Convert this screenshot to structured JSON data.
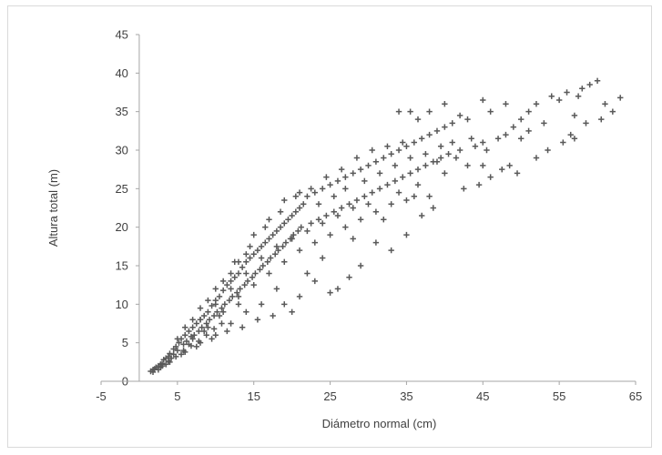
{
  "chart_data": {
    "type": "scatter",
    "xlabel": "Diámetro normal (cm)",
    "ylabel": "Altura total (m)",
    "xlim": [
      -5,
      65
    ],
    "ylim": [
      0,
      45
    ],
    "x_ticks": [
      -5,
      5,
      15,
      25,
      35,
      45,
      55,
      65
    ],
    "y_ticks": [
      0,
      5,
      10,
      15,
      20,
      25,
      30,
      35,
      40,
      45
    ],
    "grid": false,
    "legend": "none",
    "marker": "plus",
    "marker_color": "#595959",
    "series": [
      {
        "points": [
          [
            1.5,
            1.3
          ],
          [
            1.8,
            1.5
          ],
          [
            2.0,
            1.6
          ],
          [
            2.2,
            1.8
          ],
          [
            2.5,
            2.0
          ],
          [
            2.8,
            2.2
          ],
          [
            3.0,
            2.3
          ],
          [
            3.2,
            2.8
          ],
          [
            3.5,
            3.0
          ],
          [
            3.8,
            3.2
          ],
          [
            4.0,
            3.6
          ],
          [
            4.2,
            3.0
          ],
          [
            4.5,
            4.2
          ],
          [
            4.8,
            4.5
          ],
          [
            5.0,
            4.0
          ],
          [
            5.2,
            5.0
          ],
          [
            5.5,
            5.5
          ],
          [
            5.8,
            4.8
          ],
          [
            6.0,
            6.0
          ],
          [
            6.2,
            5.2
          ],
          [
            6.5,
            6.5
          ],
          [
            6.8,
            5.8
          ],
          [
            7.0,
            7.0
          ],
          [
            7.2,
            6.0
          ],
          [
            7.5,
            7.5
          ],
          [
            7.8,
            6.5
          ],
          [
            8.0,
            8.0
          ],
          [
            8.2,
            7.0
          ],
          [
            8.5,
            8.5
          ],
          [
            8.8,
            7.5
          ],
          [
            9.0,
            9.0
          ],
          [
            9.2,
            8.0
          ],
          [
            9.5,
            9.8
          ],
          [
            9.8,
            8.5
          ],
          [
            10.0,
            10.5
          ],
          [
            10.2,
            9.0
          ],
          [
            10.5,
            11.0
          ],
          [
            10.8,
            9.5
          ],
          [
            11.0,
            11.8
          ],
          [
            11.2,
            10.0
          ],
          [
            11.5,
            12.5
          ],
          [
            11.8,
            10.5
          ],
          [
            12.0,
            13.0
          ],
          [
            12.2,
            11.0
          ],
          [
            12.5,
            13.5
          ],
          [
            12.8,
            11.5
          ],
          [
            13.0,
            14.0
          ],
          [
            13.2,
            12.0
          ],
          [
            13.5,
            14.8
          ],
          [
            13.8,
            12.5
          ],
          [
            14.0,
            15.5
          ],
          [
            14.2,
            13.0
          ],
          [
            14.5,
            16.0
          ],
          [
            14.8,
            13.5
          ],
          [
            15.0,
            16.5
          ],
          [
            15.2,
            14.0
          ],
          [
            15.5,
            17.0
          ],
          [
            15.8,
            14.5
          ],
          [
            16.0,
            17.5
          ],
          [
            16.2,
            15.0
          ],
          [
            16.5,
            18.0
          ],
          [
            16.8,
            15.5
          ],
          [
            17.0,
            18.5
          ],
          [
            17.2,
            16.0
          ],
          [
            17.5,
            19.0
          ],
          [
            17.8,
            16.5
          ],
          [
            18.0,
            19.5
          ],
          [
            18.2,
            17.0
          ],
          [
            18.5,
            20.0
          ],
          [
            18.8,
            17.5
          ],
          [
            19.0,
            20.5
          ],
          [
            19.2,
            18.0
          ],
          [
            19.5,
            21.0
          ],
          [
            19.8,
            18.5
          ],
          [
            20.0,
            21.5
          ],
          [
            20.2,
            19.0
          ],
          [
            20.5,
            22.0
          ],
          [
            20.8,
            19.5
          ],
          [
            21.0,
            22.5
          ],
          [
            21.2,
            20.0
          ],
          [
            21.5,
            23.0
          ],
          [
            22.0,
            24.0
          ],
          [
            22.5,
            20.5
          ],
          [
            23.0,
            24.5
          ],
          [
            23.5,
            21.0
          ],
          [
            24.0,
            25.0
          ],
          [
            24.5,
            21.5
          ],
          [
            25.0,
            25.5
          ],
          [
            25.5,
            22.0
          ],
          [
            26.0,
            26.0
          ],
          [
            26.5,
            22.5
          ],
          [
            27.0,
            26.5
          ],
          [
            27.5,
            23.0
          ],
          [
            28.0,
            27.0
          ],
          [
            28.5,
            23.5
          ],
          [
            29.0,
            27.5
          ],
          [
            29.5,
            24.0
          ],
          [
            30.0,
            28.0
          ],
          [
            30.5,
            24.5
          ],
          [
            31.0,
            28.5
          ],
          [
            31.5,
            25.0
          ],
          [
            32.0,
            29.0
          ],
          [
            32.5,
            25.5
          ],
          [
            33.0,
            29.5
          ],
          [
            33.5,
            26.0
          ],
          [
            34.0,
            30.0
          ],
          [
            34.5,
            26.5
          ],
          [
            35.0,
            30.5
          ],
          [
            35.5,
            27.0
          ],
          [
            36.0,
            31.0
          ],
          [
            36.5,
            27.5
          ],
          [
            37.0,
            31.5
          ],
          [
            37.5,
            28.0
          ],
          [
            38.0,
            32.0
          ],
          [
            38.5,
            28.5
          ],
          [
            39.0,
            32.5
          ],
          [
            39.5,
            29.0
          ],
          [
            40.0,
            33.0
          ],
          [
            40.5,
            29.5
          ],
          [
            41.0,
            33.5
          ],
          [
            42.0,
            30.0
          ],
          [
            43.0,
            34.0
          ],
          [
            44.0,
            30.5
          ],
          [
            45.0,
            31.0
          ],
          [
            46.0,
            35.0
          ],
          [
            47.0,
            31.5
          ],
          [
            48.0,
            32.0
          ],
          [
            49.0,
            33.0
          ],
          [
            50.0,
            34.0
          ],
          [
            51.0,
            35.0
          ],
          [
            52.0,
            36.0
          ],
          [
            53.0,
            33.5
          ],
          [
            54.0,
            37.0
          ],
          [
            55.0,
            36.5
          ],
          [
            56.0,
            37.5
          ],
          [
            57.0,
            34.5
          ],
          [
            58.0,
            38.0
          ],
          [
            59.0,
            38.5
          ],
          [
            60.0,
            39.0
          ],
          [
            61.0,
            36.0
          ],
          [
            62.0,
            35.0
          ],
          [
            63.0,
            36.8
          ],
          [
            57.5,
            37.0
          ],
          [
            50.0,
            31.5
          ],
          [
            48.5,
            28.0
          ],
          [
            44.5,
            25.5
          ],
          [
            40.0,
            27.0
          ],
          [
            36.0,
            24.0
          ],
          [
            32.0,
            21.0
          ],
          [
            28.0,
            18.5
          ],
          [
            26.0,
            12.0
          ],
          [
            24.0,
            16.0
          ],
          [
            22.0,
            14.0
          ],
          [
            20.0,
            9.0
          ],
          [
            18.0,
            12.0
          ],
          [
            16.0,
            10.0
          ],
          [
            14.0,
            9.0
          ],
          [
            12.0,
            7.5
          ],
          [
            10.0,
            6.0
          ],
          [
            8.0,
            5.0
          ],
          [
            6.0,
            3.8
          ],
          [
            4.0,
            2.5
          ],
          [
            3.0,
            2.0
          ],
          [
            2.5,
            1.5
          ],
          [
            1.8,
            1.2
          ],
          [
            34.0,
            35.0
          ],
          [
            35.5,
            35.0
          ],
          [
            36.5,
            34.0
          ],
          [
            38.0,
            35.0
          ],
          [
            40.0,
            36.0
          ],
          [
            42.0,
            34.5
          ],
          [
            45.0,
            36.5
          ],
          [
            48.0,
            36.0
          ],
          [
            39.0,
            28.5
          ],
          [
            41.5,
            29.0
          ],
          [
            43.0,
            28.0
          ],
          [
            46.0,
            26.5
          ],
          [
            52.0,
            29.0
          ],
          [
            53.5,
            30.0
          ],
          [
            55.5,
            31.0
          ],
          [
            56.5,
            32.0
          ],
          [
            58.5,
            33.5
          ],
          [
            47.5,
            27.5
          ],
          [
            49.5,
            27.0
          ],
          [
            38.5,
            22.5
          ],
          [
            37.0,
            21.5
          ],
          [
            35.0,
            19.0
          ],
          [
            33.0,
            17.0
          ],
          [
            31.0,
            18.0
          ],
          [
            29.0,
            15.0
          ],
          [
            27.5,
            13.5
          ],
          [
            25.0,
            11.5
          ],
          [
            23.0,
            13.0
          ],
          [
            21.0,
            11.0
          ],
          [
            19.0,
            10.0
          ],
          [
            17.5,
            8.5
          ],
          [
            15.5,
            8.0
          ],
          [
            13.5,
            7.0
          ],
          [
            11.5,
            6.5
          ],
          [
            9.5,
            5.5
          ],
          [
            7.5,
            4.5
          ],
          [
            5.5,
            3.5
          ],
          [
            12.5,
            15.5
          ],
          [
            14.5,
            17.5
          ],
          [
            16.5,
            20.0
          ],
          [
            18.5,
            22.0
          ],
          [
            20.5,
            24.0
          ],
          [
            22.5,
            25.0
          ],
          [
            24.5,
            26.5
          ],
          [
            26.5,
            27.5
          ],
          [
            28.5,
            29.0
          ],
          [
            30.5,
            30.0
          ],
          [
            32.5,
            30.5
          ],
          [
            34.5,
            31.0
          ],
          [
            15.0,
            19.0
          ],
          [
            17.0,
            21.0
          ],
          [
            19.0,
            23.5
          ],
          [
            21.0,
            24.5
          ],
          [
            23.5,
            23.0
          ],
          [
            25.5,
            24.0
          ],
          [
            27.0,
            25.0
          ],
          [
            29.5,
            26.0
          ],
          [
            31.5,
            27.0
          ],
          [
            33.5,
            28.0
          ],
          [
            35.5,
            29.0
          ],
          [
            37.5,
            29.5
          ],
          [
            39.5,
            30.5
          ],
          [
            41.0,
            31.0
          ],
          [
            43.5,
            31.5
          ],
          [
            45.5,
            30.0
          ],
          [
            13.0,
            11.0
          ],
          [
            15.0,
            12.5
          ],
          [
            17.0,
            14.0
          ],
          [
            19.0,
            15.5
          ],
          [
            21.0,
            17.0
          ],
          [
            23.0,
            18.0
          ],
          [
            25.0,
            19.0
          ],
          [
            27.0,
            20.0
          ],
          [
            29.0,
            21.0
          ],
          [
            31.0,
            22.0
          ],
          [
            33.0,
            23.0
          ],
          [
            35.0,
            23.5
          ],
          [
            10.5,
            8.5
          ],
          [
            8.5,
            6.5
          ],
          [
            6.5,
            4.8
          ],
          [
            4.5,
            3.5
          ],
          [
            7.0,
            5.5
          ],
          [
            9.0,
            7.0
          ],
          [
            11.0,
            9.0
          ],
          [
            13.0,
            10.0
          ],
          [
            5.0,
            5.5
          ],
          [
            6.0,
            7.0
          ],
          [
            7.0,
            8.0
          ],
          [
            8.0,
            9.5
          ],
          [
            9.0,
            10.5
          ],
          [
            10.0,
            12.0
          ],
          [
            11.0,
            13.0
          ],
          [
            12.0,
            14.0
          ],
          [
            13.0,
            15.5
          ],
          [
            14.0,
            16.5
          ],
          [
            3.5,
            2.2
          ],
          [
            2.8,
            1.8
          ],
          [
            3.8,
            2.6
          ],
          [
            4.8,
            3.2
          ],
          [
            5.8,
            4.0
          ],
          [
            6.8,
            4.6
          ],
          [
            7.8,
            5.2
          ],
          [
            8.8,
            6.0
          ],
          [
            9.8,
            6.8
          ],
          [
            10.8,
            7.5
          ],
          [
            60.5,
            34.0
          ],
          [
            57.0,
            31.5
          ],
          [
            51.0,
            32.5
          ],
          [
            45.0,
            28.0
          ],
          [
            42.5,
            25.0
          ],
          [
            38.0,
            24.0
          ],
          [
            36.5,
            25.5
          ],
          [
            34.0,
            24.5
          ],
          [
            30.0,
            23.0
          ],
          [
            28.0,
            22.5
          ],
          [
            26.0,
            21.5
          ],
          [
            24.0,
            20.5
          ],
          [
            22.0,
            19.5
          ],
          [
            20.0,
            18.5
          ],
          [
            18.0,
            17.5
          ],
          [
            16.0,
            16.0
          ],
          [
            14.0,
            14.0
          ],
          [
            12.0,
            12.0
          ],
          [
            10.0,
            10.0
          ],
          [
            8.0,
            8.0
          ]
        ]
      }
    ]
  }
}
